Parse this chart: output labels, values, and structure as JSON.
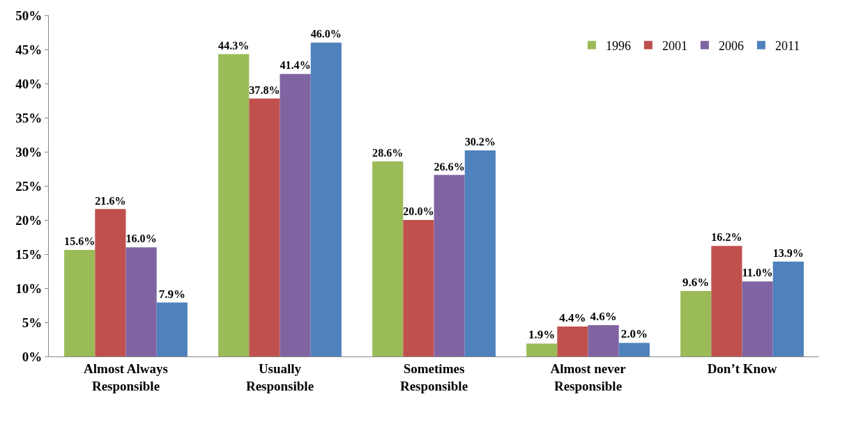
{
  "chart_data": {
    "type": "bar",
    "categories": [
      "Almost Always\nResponsible",
      "Usually\nResponsible",
      "Sometimes\nResponsible",
      "Almost never\nResponsible",
      "Don’t Know"
    ],
    "series": [
      {
        "name": "1996",
        "color": "#9bbb59",
        "values": [
          15.6,
          44.3,
          28.6,
          1.9,
          9.6
        ],
        "value_labels": [
          "15.6%",
          "44.3%",
          "28.6%",
          "1.9%",
          "9.6%"
        ]
      },
      {
        "name": "2001",
        "color": "#c0504d",
        "values": [
          21.6,
          37.8,
          20.0,
          4.4,
          16.2
        ],
        "value_labels": [
          "21.6%",
          "37.8%",
          "20.0%",
          "4.4%",
          "16.2%"
        ]
      },
      {
        "name": "2006",
        "color": "#8064a2",
        "values": [
          16.0,
          41.4,
          26.6,
          4.6,
          11.0
        ],
        "value_labels": [
          "16.0%",
          "41.4%",
          "26.6%",
          "4.6%",
          "11.0%"
        ]
      },
      {
        "name": "2011",
        "color": "#4f81bd",
        "values": [
          7.9,
          46.0,
          30.2,
          2.0,
          13.9
        ],
        "value_labels": [
          "7.9%",
          "46.0%",
          "30.2%",
          "2.0%",
          "13.9%"
        ]
      }
    ],
    "ylim": [
      0,
      50
    ],
    "yticks": [
      {
        "value": 0,
        "label": "0%"
      },
      {
        "value": 5,
        "label": "5%"
      },
      {
        "value": 10,
        "label": "10%"
      },
      {
        "value": 15,
        "label": "15%"
      },
      {
        "value": 20,
        "label": "20%"
      },
      {
        "value": 25,
        "label": "25%"
      },
      {
        "value": 30,
        "label": "30%"
      },
      {
        "value": 35,
        "label": "35%"
      },
      {
        "value": 40,
        "label": "40%"
      },
      {
        "value": 45,
        "label": "45%"
      },
      {
        "value": 50,
        "label": "50%"
      }
    ],
    "legend": "top right"
  }
}
